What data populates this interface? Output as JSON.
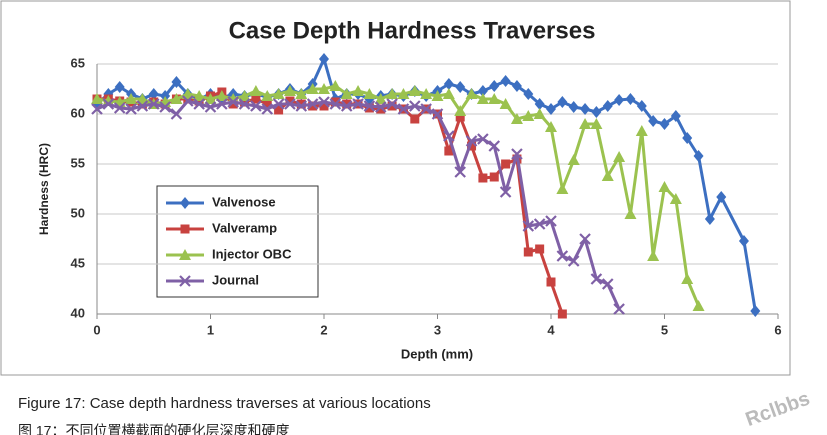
{
  "chart_data": {
    "type": "line",
    "title": "Case Depth Hardness Traverses",
    "xlabel": "Depth (mm)",
    "ylabel": "Hardness (HRC)",
    "xlim": [
      0,
      6
    ],
    "xticks": [
      0,
      1,
      2,
      3,
      4,
      5,
      6
    ],
    "ylim": [
      40,
      65
    ],
    "yticks": [
      40,
      45,
      50,
      55,
      60,
      65
    ],
    "grid": true,
    "legend": "lower left",
    "series": [
      {
        "name": "Valvenose",
        "color": "#3c6fc1",
        "marker": "diamond",
        "x": [
          0,
          0.1,
          0.2,
          0.3,
          0.4,
          0.5,
          0.6,
          0.7,
          0.8,
          0.9,
          1,
          1.1,
          1.2,
          1.3,
          1.4,
          1.5,
          1.6,
          1.7,
          1.8,
          1.9,
          2,
          2.1,
          2.2,
          2.3,
          2.4,
          2.5,
          2.6,
          2.7,
          2.8,
          2.9,
          3,
          3.1,
          3.2,
          3.3,
          3.4,
          3.5,
          3.6,
          3.7,
          3.8,
          3.9,
          4,
          4.1,
          4.2,
          4.3,
          4.4,
          4.5,
          4.6,
          4.7,
          4.8,
          4.9,
          5,
          5.1,
          5.2,
          5.3,
          5.4,
          5.5,
          5.7,
          5.8
        ],
        "values": [
          61,
          62,
          62.7,
          62,
          61.5,
          62,
          61.8,
          63.2,
          62,
          61.5,
          62,
          61.6,
          62,
          61.8,
          62,
          61.7,
          62,
          62.5,
          62,
          63,
          65.5,
          61.5,
          62,
          62,
          61.5,
          61.8,
          62,
          61.8,
          62.3,
          61.8,
          62.3,
          63,
          62.7,
          62,
          62.3,
          62.8,
          63.3,
          62.8,
          62,
          61,
          60.5,
          61.2,
          60.7,
          60.5,
          60.2,
          60.8,
          61.4,
          61.5,
          60.8,
          59.3,
          59,
          59.8,
          57.6,
          55.8,
          49.5,
          51.7,
          47.3,
          40.3
        ]
      },
      {
        "name": "Valveramp",
        "color": "#c8423f",
        "marker": "square",
        "x": [
          0,
          0.1,
          0.2,
          0.3,
          0.4,
          0.5,
          0.6,
          0.7,
          0.8,
          0.9,
          1,
          1.1,
          1.2,
          1.3,
          1.4,
          1.5,
          1.6,
          1.7,
          1.8,
          1.9,
          2,
          2.1,
          2.2,
          2.3,
          2.4,
          2.5,
          2.6,
          2.7,
          2.8,
          2.9,
          3,
          3.1,
          3.2,
          3.3,
          3.4,
          3.5,
          3.6,
          3.7,
          3.8,
          3.9,
          4,
          4.1
        ],
        "values": [
          61.5,
          61.5,
          61.3,
          61.2,
          61,
          61.2,
          61,
          61.5,
          61.5,
          61.3,
          61.8,
          62.2,
          61,
          61.2,
          61.5,
          61,
          60.4,
          61.3,
          61,
          60.8,
          60.8,
          61.2,
          61,
          61,
          60.6,
          60.5,
          60.8,
          60.5,
          59.5,
          60.5,
          60,
          56.3,
          59.7,
          56.8,
          53.6,
          53.7,
          55,
          55.5,
          46.2,
          46.5,
          43.2,
          40
        ]
      },
      {
        "name": "Injector OBC",
        "color": "#9bc24f",
        "marker": "triangle",
        "x": [
          0,
          0.1,
          0.2,
          0.3,
          0.4,
          0.5,
          0.6,
          0.7,
          0.8,
          0.9,
          1,
          1.1,
          1.2,
          1.3,
          1.4,
          1.5,
          1.6,
          1.7,
          1.8,
          1.9,
          2,
          2.1,
          2.2,
          2.3,
          2.4,
          2.5,
          2.6,
          2.7,
          2.8,
          2.9,
          3,
          3.1,
          3.2,
          3.3,
          3.4,
          3.5,
          3.6,
          3.7,
          3.8,
          3.9,
          4,
          4.1,
          4.2,
          4.3,
          4.4,
          4.5,
          4.6,
          4.7,
          4.8,
          4.9,
          5,
          5.1,
          5.2,
          5.3
        ],
        "values": [
          61.5,
          61.3,
          61.2,
          61.5,
          61.5,
          61,
          61.2,
          61.5,
          62,
          61.8,
          61.5,
          61.8,
          61.5,
          61.8,
          62.3,
          61.8,
          62,
          62.3,
          62,
          62.5,
          62.5,
          62.8,
          62,
          62.3,
          62,
          61.5,
          62,
          62,
          62.3,
          62,
          61.8,
          62,
          60.3,
          62,
          61.5,
          61.5,
          61,
          59.5,
          59.8,
          60,
          58.7,
          52.5,
          55.4,
          59,
          59,
          53.8,
          55.7,
          50,
          58.3,
          45.8,
          52.7,
          51.5,
          43.5,
          40.8
        ]
      },
      {
        "name": "Journal",
        "color": "#7f60a6",
        "marker": "x",
        "x": [
          0,
          0.1,
          0.2,
          0.3,
          0.4,
          0.5,
          0.6,
          0.7,
          0.8,
          0.9,
          1,
          1.1,
          1.2,
          1.3,
          1.4,
          1.5,
          1.6,
          1.7,
          1.8,
          1.9,
          2,
          2.1,
          2.2,
          2.3,
          2.4,
          2.5,
          2.6,
          2.7,
          2.8,
          2.9,
          3,
          3.1,
          3.2,
          3.3,
          3.4,
          3.5,
          3.6,
          3.7,
          3.8,
          3.9,
          4,
          4.1,
          4.2,
          4.3,
          4.4,
          4.5,
          4.6
        ],
        "values": [
          60.5,
          61,
          60.6,
          60.5,
          60.8,
          61,
          60.7,
          60,
          61.3,
          61,
          60.7,
          61,
          61.2,
          61,
          60.8,
          60.5,
          61,
          61,
          60.8,
          61,
          61.2,
          61,
          60.8,
          61,
          60.8,
          60.7,
          61,
          60.5,
          60.8,
          60.5,
          60,
          57.8,
          54.2,
          57.3,
          57.5,
          56.8,
          52.2,
          56,
          48.8,
          49,
          49.3,
          45.8,
          45.3,
          47.5,
          43.5,
          43,
          40.5
        ]
      }
    ]
  },
  "caption": "Figure 17: Case depth hardness traverses at various locations",
  "caption_cn": "图 17：不同位置横截面的硬化层深度和硬度",
  "watermark": "Rclbbs"
}
